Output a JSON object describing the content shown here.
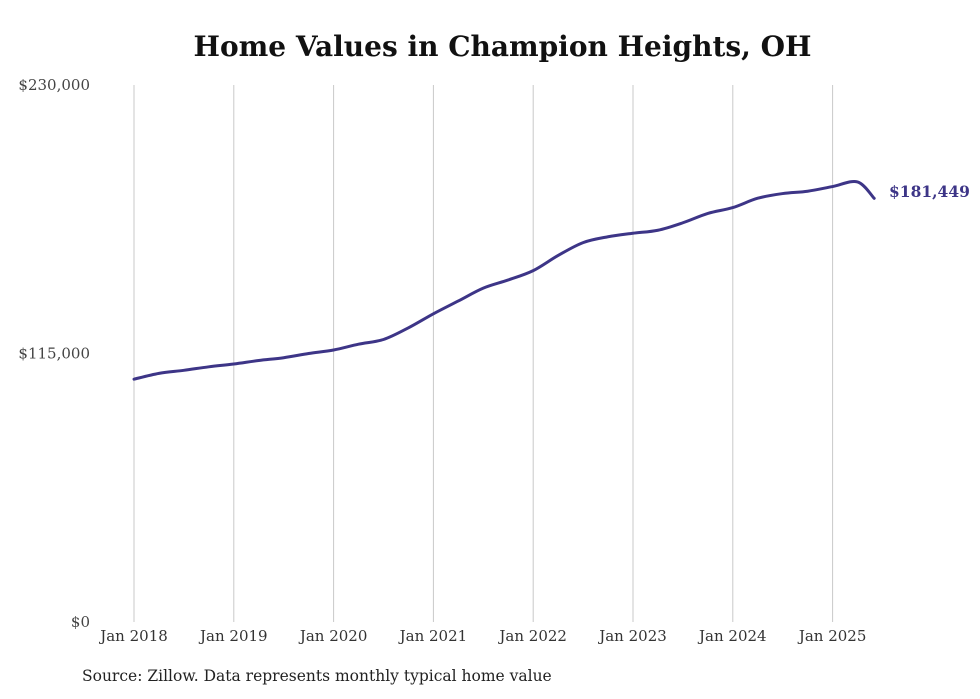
{
  "chart_data": {
    "type": "line",
    "title": "Home Values in Champion Heights, OH",
    "source": "Source: Zillow. Data represents monthly typical home value",
    "xlabel": "",
    "ylabel": "",
    "ylim": [
      0,
      230000
    ],
    "y_ticks": [
      {
        "value": 0,
        "label": "$0"
      },
      {
        "value": 115000,
        "label": "$115,000"
      },
      {
        "value": 230000,
        "label": "$230,000"
      }
    ],
    "x_ticks": [
      "Jan 2018",
      "Jan 2019",
      "Jan 2020",
      "Jan 2021",
      "Jan 2022",
      "Jan 2023",
      "Jan 2024",
      "Jan 2025"
    ],
    "grid": "vertical",
    "line_color": "#3d3587",
    "end_label": "$181,449",
    "series": [
      {
        "x": [
          "2018-01",
          "2018-04",
          "2018-07",
          "2018-10",
          "2019-01",
          "2019-04",
          "2019-07",
          "2019-10",
          "2020-01",
          "2020-04",
          "2020-07",
          "2020-10",
          "2021-01",
          "2021-04",
          "2021-07",
          "2021-10",
          "2022-01",
          "2022-04",
          "2022-07",
          "2022-10",
          "2023-01",
          "2023-04",
          "2023-07",
          "2023-10",
          "2024-01",
          "2024-04",
          "2024-07",
          "2024-10",
          "2025-01",
          "2025-04",
          "2025-06"
        ],
        "values": [
          104000,
          106500,
          107800,
          109300,
          110500,
          112000,
          113200,
          115000,
          116500,
          119000,
          121000,
          126000,
          132000,
          137500,
          143000,
          146500,
          150500,
          157000,
          162500,
          165000,
          166500,
          167800,
          171000,
          175000,
          177500,
          181500,
          183500,
          184500,
          186500,
          188500,
          181449
        ]
      }
    ]
  }
}
